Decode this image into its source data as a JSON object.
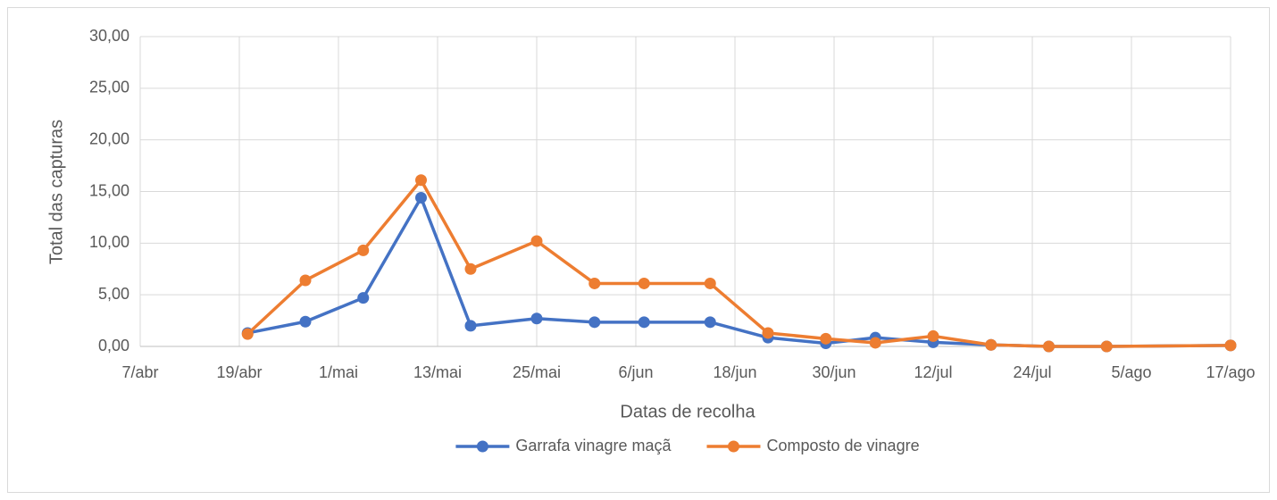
{
  "chart_data": {
    "type": "line",
    "xlabel": "Datas de recolha",
    "ylabel": "Total das capturas",
    "x": [
      "04-20",
      "04-27",
      "05-04",
      "05-11",
      "05-17",
      "05-25",
      "06-01",
      "06-07",
      "06-15",
      "06-22",
      "06-29",
      "07-05",
      "07-12",
      "07-19",
      "07-26",
      "08-02",
      "08-17"
    ],
    "series": [
      {
        "name": "Garrafa vinagre maçã",
        "color": "#4472c4",
        "values": [
          1.3,
          2.4,
          4.7,
          14.4,
          2.0,
          2.7,
          2.35,
          2.35,
          2.35,
          0.85,
          0.3,
          0.85,
          0.4,
          0.15,
          0.0,
          0.0,
          0.1
        ]
      },
      {
        "name": "Composto de vinagre",
        "color": "#ed7d31",
        "values": [
          1.2,
          6.4,
          9.3,
          16.1,
          7.5,
          10.2,
          6.1,
          6.1,
          6.1,
          1.3,
          0.75,
          0.35,
          1.0,
          0.15,
          0.0,
          0.0,
          0.1
        ]
      }
    ],
    "xlim": [
      "04-07",
      "08-17"
    ],
    "xticks": [
      {
        "value": "04-07",
        "label": "7/abr"
      },
      {
        "value": "04-19",
        "label": "19/abr"
      },
      {
        "value": "05-01",
        "label": "1/mai"
      },
      {
        "value": "05-13",
        "label": "13/mai"
      },
      {
        "value": "05-25",
        "label": "25/mai"
      },
      {
        "value": "06-06",
        "label": "6/jun"
      },
      {
        "value": "06-18",
        "label": "18/jun"
      },
      {
        "value": "06-30",
        "label": "30/jun"
      },
      {
        "value": "07-12",
        "label": "12/jul"
      },
      {
        "value": "07-24",
        "label": "24/jul"
      },
      {
        "value": "08-05",
        "label": "5/ago"
      },
      {
        "value": "08-17",
        "label": "17/ago"
      }
    ],
    "ylim": [
      0,
      30
    ],
    "yticks": [
      {
        "value": 0,
        "label": "0,00"
      },
      {
        "value": 5,
        "label": "5,00"
      },
      {
        "value": 10,
        "label": "10,00"
      },
      {
        "value": 15,
        "label": "15,00"
      },
      {
        "value": 20,
        "label": "20,00"
      },
      {
        "value": 25,
        "label": "25,00"
      },
      {
        "value": 30,
        "label": "30,00"
      }
    ],
    "grid": true,
    "legend": "bottom"
  }
}
